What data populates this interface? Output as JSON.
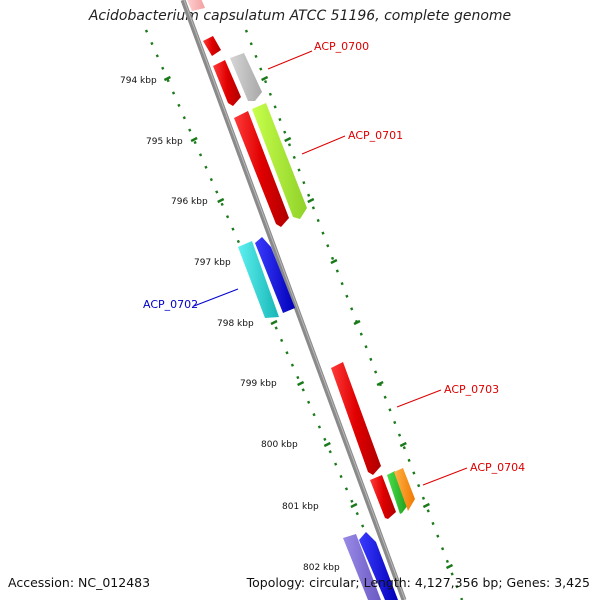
{
  "title": "Acidobacterium capsulatum ATCC 51196, complete genome",
  "footer": {
    "accession": "Accession: NC_012483",
    "summary": "Topology: circular; Length: 4,127,356 bp; Genes: 3,425"
  },
  "ticks": [
    {
      "label": "794 kbp"
    },
    {
      "label": "795 kbp"
    },
    {
      "label": "796 kbp"
    },
    {
      "label": "797 kbp"
    },
    {
      "label": "798 kbp"
    },
    {
      "label": "799 kbp"
    },
    {
      "label": "800 kbp"
    },
    {
      "label": "801 kbp"
    },
    {
      "label": "802 kbp"
    }
  ],
  "genes": [
    {
      "name": "ACP_0700",
      "color": "#dd0000"
    },
    {
      "name": "ACP_0701",
      "color": "#dd0000"
    },
    {
      "name": "ACP_0702",
      "color": "#0000cc"
    },
    {
      "name": "ACP_0703",
      "color": "#dd0000"
    },
    {
      "name": "ACP_0704",
      "color": "#dd0000"
    }
  ]
}
